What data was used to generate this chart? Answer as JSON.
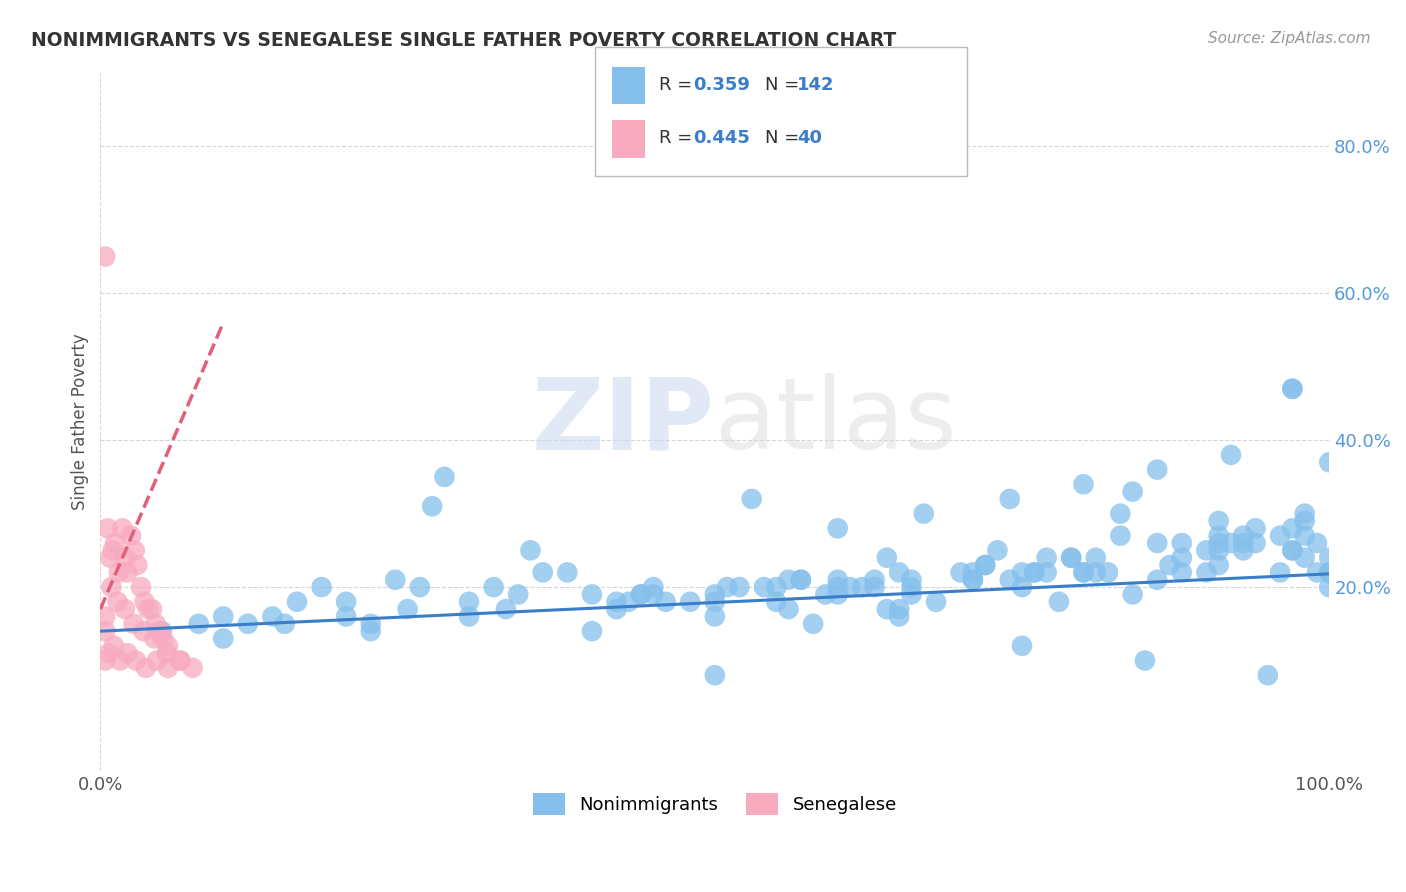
{
  "title": "NONIMMIGRANTS VS SENEGALESE SINGLE FATHER POVERTY CORRELATION CHART",
  "source_text": "Source: ZipAtlas.com",
  "ylabel": "Single Father Poverty",
  "xlim": [
    0.0,
    1.0
  ],
  "ylim": [
    -0.05,
    0.9
  ],
  "x_ticks": [
    0.0,
    1.0
  ],
  "x_tick_labels": [
    "0.0%",
    "100.0%"
  ],
  "y_tick_positions": [
    0.2,
    0.4,
    0.6,
    0.8
  ],
  "y_tick_labels": [
    "20.0%",
    "40.0%",
    "60.0%",
    "80.0%"
  ],
  "blue_color": "#85BFEC",
  "pink_color": "#F8AABF",
  "blue_line_color": "#3A7DC9",
  "pink_line_color": "#E0607A",
  "blue_R": 0.359,
  "blue_N": 142,
  "pink_R": 0.445,
  "pink_N": 40,
  "legend_label_blue": "Nonimmigrants",
  "legend_label_pink": "Senegalese",
  "watermark_zip": "ZIP",
  "watermark_atlas": "atlas",
  "background_color": "#ffffff",
  "grid_color": "#cccccc",
  "title_color": "#333333",
  "blue_scatter_x": [
    0.05,
    0.08,
    0.1,
    0.12,
    0.14,
    0.16,
    0.18,
    0.2,
    0.22,
    0.24,
    0.26,
    0.28,
    0.3,
    0.32,
    0.34,
    0.36,
    0.38,
    0.4,
    0.42,
    0.44,
    0.46,
    0.48,
    0.5,
    0.52,
    0.54,
    0.56,
    0.58,
    0.6,
    0.62,
    0.64,
    0.66,
    0.68,
    0.7,
    0.72,
    0.74,
    0.76,
    0.78,
    0.8,
    0.82,
    0.84,
    0.86,
    0.88,
    0.9,
    0.92,
    0.94,
    0.96,
    0.98,
    1.0,
    0.27,
    0.43,
    0.55,
    0.61,
    0.63,
    0.65,
    0.71,
    0.76,
    0.83,
    0.91,
    0.93,
    0.96,
    0.98,
    1.0,
    0.45,
    0.51,
    0.56,
    0.59,
    0.63,
    0.66,
    0.73,
    0.79,
    0.84,
    0.87,
    0.91,
    0.94,
    0.97,
    0.99,
    0.57,
    0.64,
    0.71,
    0.77,
    0.83,
    0.88,
    0.93,
    0.97,
    1.0,
    0.71,
    0.81,
    0.91,
    0.97,
    0.81,
    0.91,
    0.97,
    0.91,
    0.98,
    0.53,
    0.6,
    0.67,
    0.74,
    0.8,
    0.86,
    0.92,
    0.97,
    1.0,
    0.42,
    0.5,
    0.57,
    0.65,
    0.72,
    0.79,
    0.86,
    0.93,
    1.0,
    0.35,
    0.5,
    0.65,
    0.75,
    0.85,
    0.95,
    0.22,
    0.33,
    0.44,
    0.55,
    0.66,
    0.77,
    0.88,
    0.99,
    0.15,
    0.3,
    0.45,
    0.6,
    0.75,
    0.9,
    0.98,
    0.2,
    0.4,
    0.6,
    0.8,
    1.0,
    0.1,
    0.25,
    0.5,
    0.75
  ],
  "blue_scatter_y": [
    0.14,
    0.15,
    0.16,
    0.15,
    0.16,
    0.18,
    0.2,
    0.18,
    0.15,
    0.21,
    0.2,
    0.35,
    0.16,
    0.2,
    0.19,
    0.22,
    0.22,
    0.14,
    0.18,
    0.19,
    0.18,
    0.18,
    0.16,
    0.2,
    0.2,
    0.21,
    0.15,
    0.19,
    0.2,
    0.17,
    0.2,
    0.18,
    0.22,
    0.23,
    0.21,
    0.22,
    0.18,
    0.22,
    0.22,
    0.19,
    0.21,
    0.22,
    0.22,
    0.26,
    0.28,
    0.27,
    0.29,
    0.22,
    0.31,
    0.18,
    0.18,
    0.2,
    0.21,
    0.17,
    0.21,
    0.22,
    0.3,
    0.27,
    0.26,
    0.22,
    0.24,
    0.37,
    0.19,
    0.2,
    0.17,
    0.19,
    0.2,
    0.19,
    0.25,
    0.24,
    0.33,
    0.23,
    0.25,
    0.26,
    0.25,
    0.22,
    0.21,
    0.24,
    0.21,
    0.24,
    0.27,
    0.26,
    0.25,
    0.47,
    0.2,
    0.22,
    0.22,
    0.23,
    0.25,
    0.24,
    0.26,
    0.28,
    0.29,
    0.3,
    0.32,
    0.28,
    0.3,
    0.32,
    0.34,
    0.36,
    0.38,
    0.47,
    0.22,
    0.17,
    0.19,
    0.21,
    0.22,
    0.23,
    0.24,
    0.26,
    0.27,
    0.22,
    0.25,
    0.08,
    0.16,
    0.12,
    0.1,
    0.08,
    0.14,
    0.17,
    0.19,
    0.2,
    0.21,
    0.22,
    0.24,
    0.26,
    0.15,
    0.18,
    0.2,
    0.21,
    0.22,
    0.25,
    0.27,
    0.16,
    0.19,
    0.2,
    0.22,
    0.24,
    0.13,
    0.17,
    0.18,
    0.2
  ],
  "pink_scatter_x": [
    0.004,
    0.006,
    0.008,
    0.01,
    0.012,
    0.015,
    0.018,
    0.02,
    0.022,
    0.025,
    0.028,
    0.03,
    0.033,
    0.036,
    0.039,
    0.042,
    0.045,
    0.048,
    0.051,
    0.055,
    0.004,
    0.007,
    0.011,
    0.016,
    0.022,
    0.029,
    0.037,
    0.046,
    0.055,
    0.065,
    0.004,
    0.009,
    0.014,
    0.02,
    0.027,
    0.035,
    0.044,
    0.054,
    0.065,
    0.075
  ],
  "pink_scatter_y": [
    0.14,
    0.28,
    0.24,
    0.25,
    0.26,
    0.22,
    0.28,
    0.24,
    0.22,
    0.27,
    0.25,
    0.23,
    0.2,
    0.18,
    0.17,
    0.17,
    0.15,
    0.14,
    0.13,
    0.12,
    0.1,
    0.11,
    0.12,
    0.1,
    0.11,
    0.1,
    0.09,
    0.1,
    0.09,
    0.1,
    0.16,
    0.2,
    0.18,
    0.17,
    0.15,
    0.14,
    0.13,
    0.11,
    0.1,
    0.09
  ],
  "pink_outlier_x": [
    0.004
  ],
  "pink_outlier_y": [
    0.65
  ],
  "blue_trend_x": [
    0.0,
    1.0
  ],
  "blue_trend_y": [
    0.14,
    0.218
  ],
  "pink_trend_x": [
    0.0,
    0.1
  ],
  "pink_trend_y": [
    0.17,
    0.56
  ]
}
